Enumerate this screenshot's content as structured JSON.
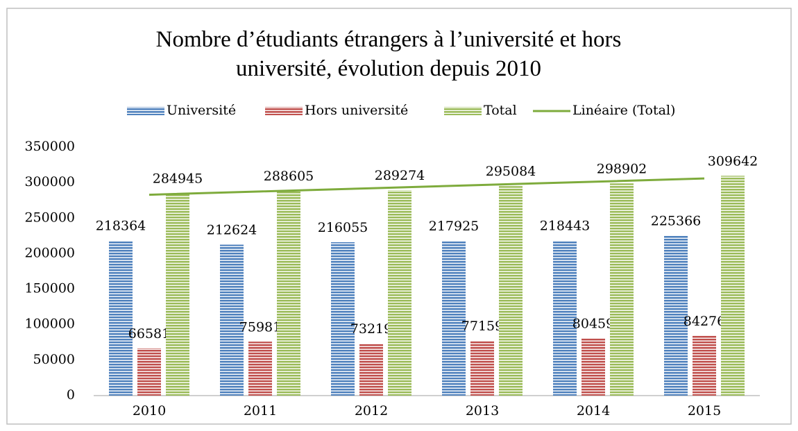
{
  "chart_data": {
    "type": "bar",
    "title": "Nombre d’étudiants étrangers à l’université et hors université, évolution depuis 2010",
    "categories": [
      "2010",
      "2011",
      "2012",
      "2013",
      "2014",
      "2015"
    ],
    "series": [
      {
        "name": "Université",
        "color": "#4f81bd",
        "values": [
          218364,
          212624,
          216055,
          217925,
          218443,
          225366
        ]
      },
      {
        "name": "Hors université",
        "color": "#c0504d",
        "values": [
          66581,
          75981,
          73219,
          77159,
          80459,
          84276
        ]
      },
      {
        "name": "Total",
        "color": "#9bbb59",
        "values": [
          284945,
          288605,
          289274,
          295084,
          298902,
          309642
        ]
      },
      {
        "name": "Linéaire (Total)",
        "color": "#7eab3c",
        "type": "line",
        "values": [
          282967,
          287544,
          292121,
          296697,
          301274,
          305850
        ]
      }
    ],
    "ylim": [
      0,
      350000
    ],
    "yticks": [
      0,
      50000,
      100000,
      150000,
      200000,
      250000,
      300000,
      350000
    ],
    "grid": false
  }
}
